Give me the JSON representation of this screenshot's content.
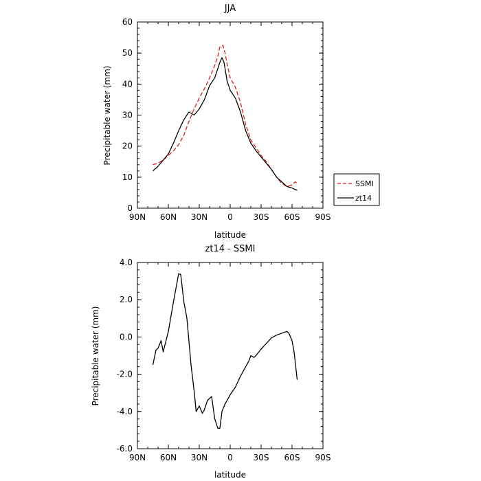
{
  "chart_data": [
    {
      "type": "line",
      "title": "JJA",
      "xlabel": "latitude",
      "ylabel": "Precipitable water (mm)",
      "xlim": [
        90,
        -90
      ],
      "ylim": [
        0,
        60
      ],
      "x_ticks": [
        90,
        60,
        30,
        0,
        -30,
        -60,
        -90
      ],
      "x_tick_labels": [
        "90N",
        "60N",
        "30N",
        "0",
        "30S",
        "60S",
        "90S"
      ],
      "y_ticks": [
        0,
        10,
        20,
        30,
        40,
        50,
        60
      ],
      "y_tick_labels": [
        "0",
        "10",
        "20",
        "30",
        "40",
        "50",
        "60"
      ],
      "legend_position": "outside-right",
      "series": [
        {
          "name": "SSMI",
          "color": "#e41a1c",
          "dash": "dashed",
          "x": [
            75,
            70,
            65,
            60,
            55,
            50,
            45,
            40,
            35,
            30,
            25,
            20,
            15,
            12,
            10,
            7,
            5,
            3,
            0,
            -5,
            -10,
            -15,
            -20,
            -25,
            -30,
            -35,
            -40,
            -45,
            -50,
            -55,
            -60,
            -63,
            -65
          ],
          "y": [
            14.0,
            14.5,
            15.5,
            17.0,
            18.5,
            20.5,
            23.5,
            28.0,
            32.0,
            35.5,
            38.5,
            42.0,
            46.0,
            49.0,
            52.0,
            52.5,
            50.0,
            46.5,
            42.0,
            39.0,
            34.0,
            27.0,
            22.0,
            19.5,
            17.0,
            15.0,
            12.5,
            10.0,
            8.0,
            7.0,
            7.5,
            8.5,
            8.0
          ]
        },
        {
          "name": "zt14",
          "color": "#000000",
          "dash": "solid",
          "x": [
            75,
            70,
            65,
            60,
            55,
            50,
            45,
            42,
            40,
            35,
            30,
            25,
            20,
            15,
            12,
            10,
            8,
            6,
            5,
            3,
            0,
            -5,
            -10,
            -15,
            -20,
            -25,
            -30,
            -35,
            -40,
            -45,
            -50,
            -55,
            -60,
            -63,
            -65
          ],
          "y": [
            12.0,
            13.5,
            15.5,
            17.5,
            21.0,
            25.0,
            28.5,
            30.0,
            31.0,
            30.0,
            32.0,
            35.0,
            39.5,
            42.0,
            45.0,
            47.0,
            48.5,
            47.0,
            45.0,
            41.0,
            38.0,
            35.5,
            31.0,
            25.0,
            21.0,
            18.5,
            16.5,
            14.5,
            12.5,
            10.0,
            8.5,
            7.0,
            6.5,
            6.0,
            5.8
          ]
        }
      ]
    },
    {
      "type": "line",
      "title": "zt14 - SSMI",
      "xlabel": "latitude",
      "ylabel": "Precipitable water (mm)",
      "xlim": [
        90,
        -90
      ],
      "ylim": [
        -6,
        4
      ],
      "x_ticks": [
        90,
        60,
        30,
        0,
        -30,
        -60,
        -90
      ],
      "x_tick_labels": [
        "90N",
        "60N",
        "30N",
        "0",
        "30S",
        "60S",
        "90S"
      ],
      "y_ticks": [
        -6,
        -4,
        -2,
        0,
        2,
        4
      ],
      "y_tick_labels": [
        "-6.0",
        "-4.0",
        "-2.0",
        "0.0",
        "2.0",
        "4.0"
      ],
      "series": [
        {
          "name": "",
          "color": "#000000",
          "dash": "solid",
          "x": [
            75,
            72,
            70,
            67,
            65,
            60,
            55,
            50,
            48,
            45,
            42,
            38,
            35,
            33,
            30,
            27,
            25,
            22,
            18,
            15,
            12,
            10,
            8,
            5,
            0,
            -5,
            -10,
            -15,
            -18,
            -20,
            -23,
            -25,
            -30,
            -35,
            -40,
            -45,
            -50,
            -55,
            -57,
            -60,
            -62,
            -65
          ],
          "y": [
            -1.5,
            -0.7,
            -0.6,
            -0.2,
            -0.8,
            0.3,
            1.9,
            3.4,
            3.35,
            1.9,
            1.0,
            -1.5,
            -2.9,
            -4.0,
            -3.7,
            -4.1,
            -3.9,
            -3.4,
            -3.2,
            -4.4,
            -4.9,
            -4.9,
            -4.0,
            -3.6,
            -3.1,
            -2.7,
            -2.1,
            -1.6,
            -1.3,
            -1.0,
            -1.1,
            -1.0,
            -0.65,
            -0.35,
            -0.05,
            0.1,
            0.2,
            0.3,
            0.2,
            -0.2,
            -0.8,
            -2.3
          ]
        }
      ]
    }
  ]
}
